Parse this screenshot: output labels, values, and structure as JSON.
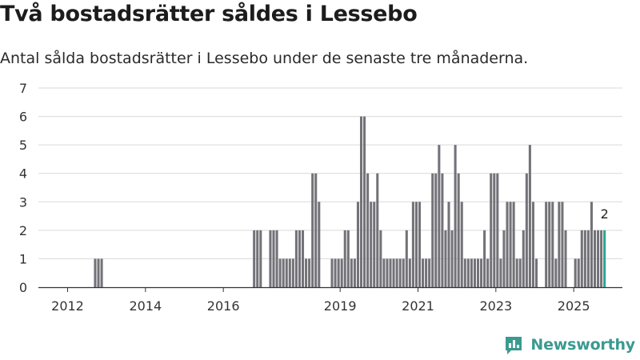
{
  "title": "Två bostadsrätter såldes i Lessebo",
  "subtitle": "Antal sålda bostadsrätter i Lessebo under de senaste tre månaderna.",
  "brand": {
    "name": "Newsworthy",
    "icon": "bar-chart-logo-icon",
    "color": "#3a9a90"
  },
  "colors": {
    "bar": "#737278",
    "highlight": "#2aa595",
    "grid": "#d9d9d9",
    "axis": "#333333"
  },
  "chart_data": {
    "type": "bar",
    "start_year": 2011.25,
    "step_years": 0.08333,
    "ylim": [
      0,
      7
    ],
    "yticks": [
      0,
      1,
      2,
      3,
      4,
      5,
      6,
      7
    ],
    "xlim": [
      2011.25,
      2026.25
    ],
    "xticks": [
      2012,
      2014,
      2016,
      2019,
      2021,
      2023,
      2025
    ],
    "xtick_labels": [
      "2012",
      "2014",
      "2016",
      "2019",
      "2021",
      "2023",
      "2025"
    ],
    "grid": true,
    "highlight_last": true,
    "last_value_label": "2",
    "values": [
      0,
      0,
      0,
      0,
      0,
      0,
      0,
      0,
      0,
      0,
      0,
      0,
      0,
      0,
      0,
      0,
      0,
      1,
      1,
      1,
      0,
      0,
      0,
      0,
      0,
      0,
      0,
      0,
      0,
      0,
      0,
      0,
      0,
      0,
      0,
      0,
      0,
      0,
      0,
      0,
      0,
      0,
      0,
      0,
      0,
      0,
      0,
      0,
      0,
      0,
      0,
      0,
      0,
      0,
      0,
      0,
      0,
      0,
      0,
      0,
      0,
      0,
      0,
      0,
      0,
      0,
      2,
      2,
      2,
      0,
      0,
      2,
      2,
      2,
      1,
      1,
      1,
      1,
      1,
      2,
      2,
      2,
      1,
      1,
      4,
      4,
      3,
      0,
      0,
      0,
      1,
      1,
      1,
      1,
      2,
      2,
      1,
      1,
      3,
      6,
      6,
      4,
      3,
      3,
      4,
      2,
      1,
      1,
      1,
      1,
      1,
      1,
      1,
      2,
      1,
      3,
      3,
      3,
      1,
      1,
      1,
      4,
      4,
      5,
      4,
      2,
      3,
      2,
      5,
      4,
      3,
      1,
      1,
      1,
      1,
      1,
      1,
      2,
      1,
      4,
      4,
      4,
      1,
      2,
      3,
      3,
      3,
      1,
      1,
      2,
      4,
      5,
      3,
      1,
      0,
      0,
      3,
      3,
      3,
      1,
      3,
      3,
      2,
      0,
      0,
      1,
      1,
      2,
      2,
      2,
      3,
      2,
      2,
      2,
      2
    ]
  }
}
